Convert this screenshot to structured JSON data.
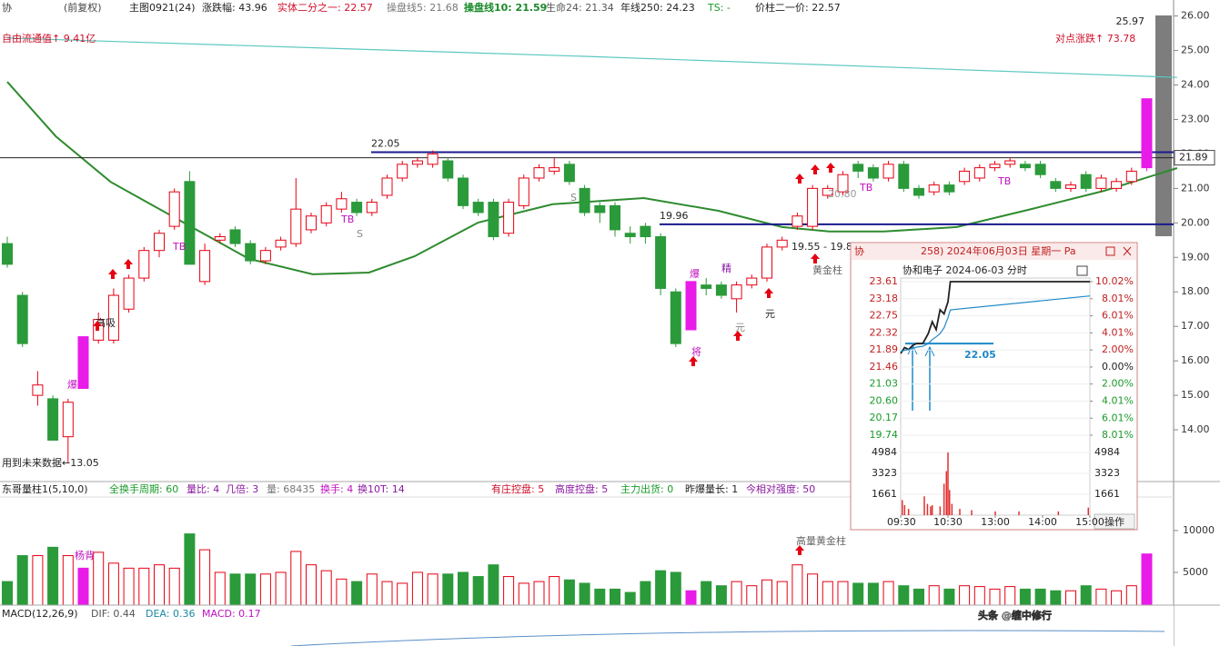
{
  "toolbar": [
    "协",
    "(前复权)",
    "主图0921(24)",
    "涨跌幅: 43.96",
    "实体二分之一: 22.57",
    "操盘线5: 21.68",
    "操盘线10: 21.59",
    "生命24: 21.34",
    "年线250: 24.23",
    "TS: -",
    "价柱二一价: 22.57"
  ],
  "notes": {
    "float_value": "自由流通值↑ 9.41亿",
    "point_change": "对点涨跌↑ 73.78",
    "future": "用到未来数据←13.05",
    "top_price": "25.97",
    "marks": [
      "高吸",
      "爆",
      "爆",
      "TB",
      "TB",
      "S",
      "S",
      "精",
      "元",
      "元",
      "将",
      "黄金柱",
      "19.55 - 19.8",
      "20.80",
      "TB",
      "TB",
      "杨背",
      "高量黄金柱"
    ]
  },
  "indicator_row": [
    "东哥量柱1(5,10,0)",
    "全换手周期: 60",
    "量比: 4",
    "几倍: 3",
    "量: 68435",
    "换手: 4",
    "换10T: 14",
    "有庄控盘: 5",
    "高度控盘: 5",
    "主力出货: 0",
    "昨爆量长: 1",
    "今相对强度: 50"
  ],
  "macd_row": [
    "MACD(12,26,9)",
    "DIF: 0.44",
    "DEA: 0.36",
    "MACD: 0.17"
  ],
  "inset": {
    "title_a": "协",
    "title_b": "258) 2024年06月03日 星期一 Pa",
    "subtitle": "协和电子  2024-06-03 分时",
    "button": "操作"
  },
  "watermark": "头条 @缠中修行",
  "chart_data": [
    {
      "type": "candlestick",
      "colors": {
        "up": "#e60012",
        "down": "#2b9a3a",
        "limit": "#e81be8"
      },
      "open": [
        19.4,
        17.9,
        15.0,
        14.9,
        13.8,
        15.2,
        16.6,
        16.6,
        17.5,
        18.4,
        19.2,
        19.9,
        21.2,
        18.3,
        19.5,
        19.8,
        19.4,
        18.9,
        19.3,
        19.4,
        19.8,
        20.0,
        20.4,
        20.6,
        20.3,
        20.8,
        21.3,
        21.7,
        21.7,
        21.8,
        21.3,
        20.6,
        20.6,
        19.7,
        20.5,
        21.3,
        21.5,
        21.7,
        21.0,
        20.5,
        20.5,
        19.7,
        19.9,
        19.6,
        18.0,
        16.9,
        18.2,
        18.2,
        17.8,
        18.2,
        18.4,
        19.3,
        19.9,
        19.9,
        20.8,
        20.9,
        21.7,
        21.6,
        21.3,
        21.7,
        21.0,
        20.9,
        21.1,
        21.2,
        21.3,
        21.6,
        21.7,
        21.7,
        21.7,
        21.2,
        21.0,
        21.4,
        21.0,
        21.0,
        21.2,
        21.6
      ],
      "high": [
        19.6,
        18.0,
        15.7,
        15.0,
        14.9,
        16.7,
        17.4,
        18.1,
        18.5,
        19.3,
        19.8,
        21.0,
        21.5,
        19.4,
        19.7,
        19.9,
        19.5,
        19.3,
        19.6,
        21.3,
        20.3,
        20.6,
        20.9,
        20.7,
        20.7,
        21.4,
        21.8,
        21.9,
        22.1,
        21.9,
        21.4,
        20.7,
        20.7,
        20.7,
        21.4,
        21.7,
        21.9,
        21.8,
        21.1,
        20.6,
        20.6,
        19.9,
        20.0,
        19.7,
        18.1,
        18.3,
        18.4,
        18.3,
        18.3,
        18.5,
        19.4,
        19.6,
        20.3,
        21.1,
        21.1,
        21.5,
        21.8,
        21.7,
        21.8,
        21.8,
        21.1,
        21.2,
        21.2,
        21.6,
        21.7,
        21.8,
        21.9,
        21.8,
        21.8,
        21.3,
        21.2,
        21.5,
        21.4,
        21.3,
        21.6,
        23.6
      ],
      "low": [
        18.7,
        16.4,
        14.7,
        13.7,
        13.05,
        15.2,
        16.5,
        16.5,
        17.4,
        18.3,
        19.0,
        19.8,
        18.8,
        18.2,
        19.4,
        19.3,
        18.8,
        18.8,
        19.2,
        19.3,
        19.7,
        19.9,
        20.3,
        20.2,
        20.2,
        20.7,
        21.2,
        21.6,
        21.6,
        21.2,
        20.4,
        20.2,
        19.5,
        19.6,
        20.4,
        21.2,
        21.4,
        21.1,
        20.2,
        20.0,
        19.6,
        19.4,
        19.4,
        17.9,
        16.4,
        16.9,
        17.9,
        17.8,
        17.4,
        18.1,
        18.3,
        19.2,
        19.8,
        19.8,
        20.7,
        20.8,
        21.3,
        21.2,
        21.2,
        20.9,
        20.7,
        20.8,
        20.8,
        21.1,
        21.2,
        21.5,
        21.6,
        21.5,
        21.3,
        20.9,
        20.9,
        20.9,
        20.9,
        20.9,
        21.1,
        21.5
      ],
      "close": [
        18.8,
        16.5,
        15.3,
        13.7,
        14.8,
        16.7,
        17.2,
        17.9,
        18.4,
        19.2,
        19.7,
        20.9,
        18.8,
        19.2,
        19.6,
        19.4,
        18.9,
        19.2,
        19.5,
        20.4,
        20.2,
        20.5,
        20.7,
        20.3,
        20.6,
        21.3,
        21.7,
        21.8,
        22.0,
        21.3,
        20.5,
        20.3,
        19.6,
        20.6,
        21.3,
        21.6,
        21.6,
        21.2,
        20.3,
        20.3,
        19.8,
        19.6,
        19.6,
        18.1,
        16.5,
        18.3,
        18.1,
        17.9,
        18.2,
        18.4,
        19.3,
        19.5,
        20.2,
        21.0,
        21.0,
        21.4,
        21.5,
        21.3,
        21.7,
        21.0,
        20.8,
        21.1,
        20.9,
        21.5,
        21.6,
        21.7,
        21.8,
        21.6,
        21.4,
        21.0,
        21.1,
        21.0,
        21.3,
        21.2,
        21.5,
        23.6
      ],
      "ylim": [
        12.5,
        26.2
      ],
      "yticks": [
        {
          "value": 14,
          "label": "14.00"
        },
        {
          "value": 15,
          "label": "15.00"
        },
        {
          "value": 16,
          "label": "16.00"
        },
        {
          "value": 17,
          "label": "17.00"
        },
        {
          "value": 18,
          "label": "18.00"
        },
        {
          "value": 19,
          "label": "19.00"
        },
        {
          "value": 20,
          "label": "20.00"
        },
        {
          "value": 21,
          "label": "21.00"
        },
        {
          "value": 22,
          "label": "22.00"
        },
        {
          "value": 23,
          "label": "23.00"
        },
        {
          "value": 24,
          "label": "24.00"
        },
        {
          "value": 25,
          "label": "25.00"
        },
        {
          "value": 26,
          "label": "26.00"
        }
      ],
      "lines": [
        {
          "color": "#2e8b2e",
          "x": [
            0,
            3.2,
            6.8,
            11.6,
            15.9,
            20.1,
            23.8,
            26.8,
            31,
            35.9,
            41.9,
            46.8,
            51,
            54.1,
            57.7,
            62.5,
            67.4,
            72.2,
            77
          ],
          "values": [
            24.09,
            22.51,
            21.19,
            20.01,
            18.96,
            18.51,
            18.56,
            19.03,
            20.01,
            20.54,
            20.72,
            20.35,
            19.88,
            19.75,
            19.75,
            19.88,
            20.4,
            20.93,
            21.59
          ]
        },
        {
          "color": "#5cc8c0",
          "x": [
            0,
            38,
            77
          ],
          "values": [
            25.36,
            24.83,
            24.22
          ]
        }
      ],
      "levels": [
        {
          "value": 22.05,
          "color": "#1a1a8c"
        },
        {
          "value": 19.96,
          "color": "#1a1a8c"
        },
        {
          "value": 21.89,
          "color": "#222222"
        }
      ]
    },
    {
      "type": "bar",
      "values": [
        3900,
        7000,
        7000,
        8000,
        7000,
        5500,
        7400,
        6100,
        5500,
        5500,
        5900,
        5500,
        9600,
        7700,
        5000,
        4800,
        4800,
        4800,
        5000,
        7500,
        5900,
        5200,
        4200,
        3900,
        4800,
        3900,
        3700,
        5000,
        4800,
        4800,
        5000,
        4500,
        5900,
        4500,
        3700,
        3900,
        4500,
        4100,
        3700,
        3000,
        3000,
        2600,
        3900,
        5200,
        5000,
        2800,
        3900,
        3400,
        3900,
        3400,
        4100,
        3900,
        5900,
        4800,
        3900,
        3900,
        3700,
        3700,
        3900,
        3400,
        3000,
        3400,
        3000,
        3400,
        3300,
        3000,
        3300,
        3000,
        3000,
        2800,
        2800,
        3400,
        3000,
        2800,
        3400,
        7200
      ],
      "ylim": [
        0,
        13900
      ],
      "yticks": [
        5000,
        10000
      ]
    },
    {
      "type": "line",
      "x": [
        0,
        5,
        10,
        15,
        20,
        28,
        35,
        40,
        45,
        50,
        55,
        60,
        63,
        240
      ],
      "xticks": [
        {
          "value": 0,
          "label": "09:30"
        },
        {
          "value": 60,
          "label": "10:30"
        },
        {
          "value": 120,
          "label": "13:00"
        },
        {
          "value": 180,
          "label": "14:00"
        },
        {
          "value": 240,
          "label": "15:00"
        }
      ],
      "xlim": [
        0,
        240
      ],
      "series": [
        {
          "color": "#222222",
          "values": [
            21.8,
            21.95,
            21.9,
            22.0,
            22.05,
            22.05,
            22.3,
            22.6,
            22.4,
            22.9,
            22.8,
            23.1,
            23.61,
            23.61
          ]
        },
        {
          "color": "#1e88c8",
          "values": [
            21.85,
            21.88,
            21.9,
            21.93,
            21.96,
            21.98,
            22.05,
            22.15,
            22.22,
            22.3,
            22.45,
            22.7,
            22.9,
            23.25
          ]
        }
      ],
      "ylim": [
        19.74,
        23.61
      ],
      "yticks": [
        23.61,
        23.18,
        22.75,
        22.32,
        21.89,
        21.46,
        21.03,
        {
          "value": 20.6,
          "label": "20.60"
        },
        20.17,
        19.74
      ],
      "y2lim": [
        -8.01,
        10.02
      ],
      "y2ticks": [
        {
          "value": 10.02,
          "label": "10.02%"
        },
        {
          "value": 8.01,
          "label": "8.01%"
        },
        {
          "value": 6.01,
          "label": "6.01%"
        },
        {
          "value": 4.01,
          "label": "4.01%"
        },
        {
          "value": 2,
          "label": "2.00%"
        },
        {
          "value": 0,
          "label": "0.00%"
        },
        {
          "value": -2,
          "label": "2.00%"
        },
        {
          "value": -4.01,
          "label": "4.01%"
        },
        {
          "value": -6.01,
          "label": "6.01%"
        },
        {
          "value": -8.01,
          "label": "8.01%"
        }
      ],
      "levels": [
        {
          "value": 22.05,
          "color": "#1e88c8"
        }
      ]
    },
    {
      "type": "bar",
      "color": "#e03030",
      "x": [
        2,
        5,
        10,
        30,
        34,
        38,
        40,
        50,
        55,
        58,
        60,
        62,
        65,
        75,
        90,
        120,
        150,
        200,
        238
      ],
      "values": [
        1200,
        800,
        500,
        1500,
        900,
        700,
        800,
        700,
        2500,
        3500,
        4984,
        2000,
        900,
        500,
        400,
        300,
        300,
        300,
        600
      ],
      "xlim": [
        0,
        240
      ],
      "ylim": [
        0,
        4984
      ],
      "yticks": [
        4984,
        3323,
        1661
      ]
    }
  ]
}
